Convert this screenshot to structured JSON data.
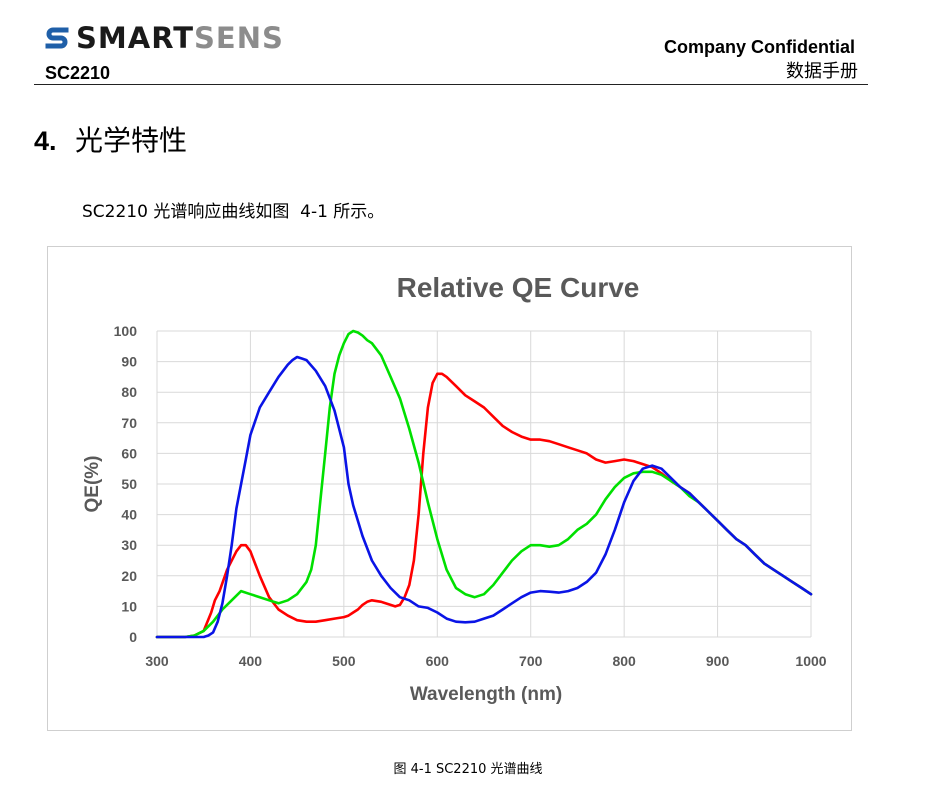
{
  "header": {
    "logo_part1": "SMART",
    "logo_part2": "SENS",
    "doc_id": "SC2210",
    "confidential": "Company Confidential",
    "doc_type": "数据手册"
  },
  "section": {
    "number": "4.",
    "title": "光学特性",
    "intro": "SC2210 光谱响应曲线如图  4-1 所示。"
  },
  "figure": {
    "caption": "图  4-1 SC2210 光谱曲线"
  },
  "colors": {
    "red": "#ff0000",
    "green": "#00e000",
    "blue": "#0a14e6",
    "logo_s": "#1f5fa8",
    "axis_text": "#595959"
  },
  "chart_data": {
    "type": "line",
    "title": "Relative QE Curve",
    "xlabel": "Wavelength (nm)",
    "ylabel": "QE(%)",
    "xlim": [
      300,
      1000
    ],
    "ylim": [
      0,
      100
    ],
    "xticks": [
      "300",
      "400",
      "500",
      "600",
      "700",
      "800",
      "900",
      "1000"
    ],
    "yticks": [
      "0",
      "10",
      "20",
      "30",
      "40",
      "50",
      "60",
      "70",
      "80",
      "90",
      "100"
    ],
    "grid": true,
    "series": [
      {
        "color": "#ff0000",
        "x": [
          300,
          330,
          340,
          350,
          358,
          362,
          367,
          375,
          385,
          390,
          395,
          400,
          405,
          410,
          420,
          430,
          440,
          450,
          460,
          470,
          480,
          490,
          500,
          505,
          510,
          515,
          520,
          525,
          530,
          540,
          550,
          555,
          560,
          565,
          570,
          575,
          580,
          585,
          590,
          595,
          600,
          605,
          610,
          620,
          630,
          640,
          650,
          660,
          670,
          680,
          690,
          700,
          710,
          720,
          730,
          740,
          750,
          760,
          770,
          780,
          790,
          800,
          810,
          820,
          830,
          840,
          850,
          860,
          870,
          880,
          890,
          900,
          910,
          920,
          930,
          940,
          950,
          960,
          970,
          980,
          990,
          1000
        ],
        "y": [
          0,
          0,
          0.5,
          2,
          8,
          12,
          15,
          22,
          28,
          30,
          30,
          28,
          24,
          20,
          13,
          9,
          7,
          5.5,
          5,
          5,
          5.5,
          6,
          6.5,
          7,
          8,
          9,
          10.5,
          11.5,
          12,
          11.5,
          10.5,
          10,
          10.5,
          13,
          17,
          25,
          40,
          60,
          75,
          83,
          86,
          86,
          85,
          82,
          79,
          77,
          75,
          72,
          69,
          67,
          65.5,
          64.5,
          64.5,
          64,
          63,
          62,
          61,
          60,
          58,
          57,
          57.5,
          58,
          57.5,
          56.5,
          55.5,
          53.5,
          51,
          49,
          47,
          44,
          41,
          38,
          35,
          32,
          30,
          27,
          24,
          22,
          20,
          18,
          16,
          14
        ]
      },
      {
        "color": "#00e000",
        "x": [
          300,
          330,
          340,
          350,
          360,
          370,
          380,
          390,
          400,
          410,
          420,
          430,
          440,
          450,
          460,
          465,
          470,
          475,
          480,
          485,
          490,
          495,
          500,
          505,
          510,
          515,
          520,
          525,
          530,
          540,
          550,
          560,
          570,
          580,
          590,
          600,
          610,
          620,
          630,
          640,
          650,
          660,
          670,
          680,
          690,
          700,
          710,
          720,
          730,
          740,
          750,
          760,
          770,
          780,
          790,
          800,
          810,
          820,
          830,
          840,
          850,
          860,
          870,
          880,
          890,
          900,
          910,
          920,
          930,
          940,
          950,
          960,
          970,
          980,
          990,
          1000
        ],
        "y": [
          0,
          0,
          0.5,
          2,
          5,
          9,
          12,
          15,
          14,
          13,
          12,
          11,
          12,
          14,
          18,
          22,
          30,
          45,
          60,
          75,
          86,
          92,
          96,
          99,
          100,
          99.5,
          98.5,
          97,
          96,
          92,
          85,
          78,
          68,
          57,
          44,
          32,
          22,
          16,
          14,
          13,
          14,
          17,
          21,
          25,
          28,
          30,
          30,
          29.5,
          30,
          32,
          35,
          37,
          40,
          45,
          49,
          52,
          53.5,
          54,
          54,
          53,
          51,
          49,
          46,
          44,
          41,
          38,
          35,
          32,
          30,
          27,
          24,
          22,
          20,
          18,
          16,
          14
        ]
      },
      {
        "color": "#0a14e6",
        "x": [
          300,
          340,
          350,
          355,
          360,
          365,
          370,
          375,
          380,
          385,
          390,
          395,
          400,
          410,
          420,
          430,
          440,
          445,
          450,
          455,
          460,
          470,
          480,
          490,
          500,
          505,
          510,
          520,
          530,
          540,
          550,
          560,
          570,
          580,
          590,
          600,
          610,
          620,
          630,
          640,
          650,
          660,
          670,
          680,
          690,
          700,
          710,
          720,
          730,
          740,
          750,
          760,
          770,
          780,
          790,
          800,
          810,
          820,
          830,
          840,
          850,
          860,
          870,
          880,
          890,
          900,
          910,
          920,
          930,
          940,
          950,
          960,
          970,
          980,
          990,
          1000
        ],
        "y": [
          0,
          0,
          0,
          0.5,
          1.5,
          5,
          11,
          20,
          30,
          42,
          50,
          58,
          66,
          75,
          80,
          85,
          89,
          90.5,
          91.5,
          91,
          90.5,
          87,
          82,
          74,
          62,
          50,
          43,
          33,
          25,
          20,
          16,
          13,
          12,
          10,
          9.5,
          8,
          6,
          5,
          4.8,
          5,
          6,
          7,
          9,
          11,
          13,
          14.5,
          15,
          14.8,
          14.5,
          15,
          16,
          18,
          21,
          27,
          35,
          44,
          51,
          55,
          56,
          55,
          52,
          49,
          47,
          44,
          41,
          38,
          35,
          32,
          30,
          27,
          24,
          22,
          20,
          18,
          16,
          14
        ]
      }
    ]
  }
}
